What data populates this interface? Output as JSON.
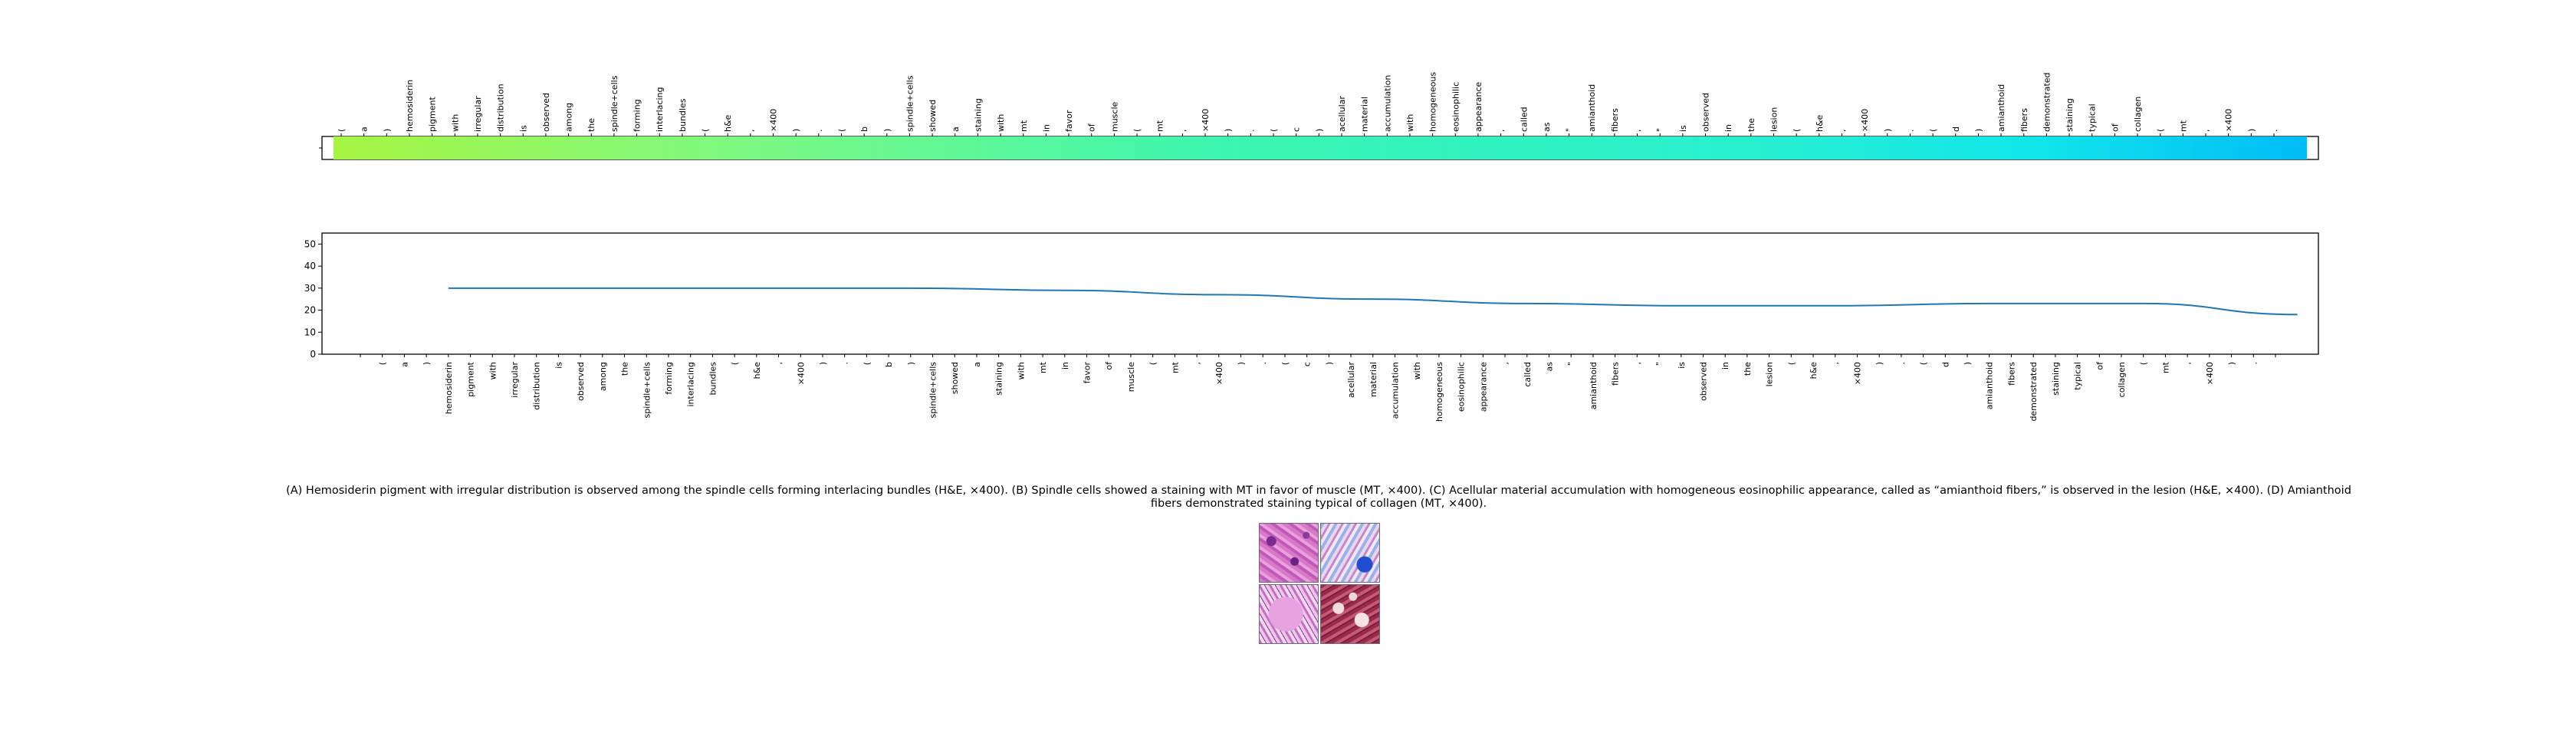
{
  "chart_data": [
    {
      "type": "heatmap",
      "tokens": [
        "(",
        "a",
        ")",
        "hemosiderin",
        "pigment",
        "with",
        "irregular",
        "distribution",
        "is",
        "observed",
        "among",
        "the",
        "spindle+cells",
        "forming",
        "interlacing",
        "bundles",
        "(",
        "h&e",
        ",",
        "×400",
        ")",
        ".",
        "(",
        "b",
        ")",
        "spindle+cells",
        "showed",
        "a",
        "staining",
        "with",
        "mt",
        "in",
        "favor",
        "of",
        "muscle",
        "(",
        "mt",
        ",",
        "×400",
        ")",
        ".",
        "(",
        "c",
        ")",
        "acellular",
        "material",
        "accumulation",
        "with",
        "homogeneous",
        "eosinophilic",
        "appearance",
        ",",
        "called",
        "as",
        "\"",
        "amianthoid",
        "fibers",
        ",",
        "\"",
        "is",
        "observed",
        "in",
        "the",
        "lesion",
        "(",
        "h&e",
        ",",
        "×400",
        ")",
        ".",
        "(",
        "d",
        ")",
        "amianthoid",
        "fibers",
        "demonstrated",
        "staining",
        "typical",
        "of",
        "collagen",
        "(",
        "mt",
        ",",
        "×400",
        ")",
        "."
      ],
      "color_stops": [
        "#a6f542",
        "#7ef980",
        "#3cf6b0",
        "#27efd0",
        "#12e6ea",
        "#00bcf7"
      ],
      "colormap": "jet"
    },
    {
      "type": "line",
      "x_tick_labels": [
        "",
        "(",
        "a",
        ")",
        "hemosiderin",
        "pigment",
        "with",
        "irregular",
        "distribution",
        "is",
        "observed",
        "among",
        "the",
        "spindle+cells",
        "forming",
        "interlacing",
        "bundles",
        "(",
        "h&e",
        ",",
        "×400",
        ")",
        ".",
        "(",
        "b",
        ")",
        "spindle+cells",
        "showed",
        "a",
        "staining",
        "with",
        "mt",
        "in",
        "favor",
        "of",
        "muscle",
        "(",
        "mt",
        ",",
        "×400",
        ")",
        ".",
        "(",
        "c",
        ")",
        "acellular",
        "material",
        "accumulation",
        "with",
        "homogeneous",
        "eosinophilic",
        "appearance",
        ",",
        "called",
        "as",
        "\"",
        "amianthoid",
        "fibers",
        ",",
        "\"",
        "is",
        "observed",
        "in",
        "the",
        "lesion",
        "(",
        "h&e",
        ",",
        "×400",
        ")",
        ".",
        "(",
        "d",
        ")",
        "amianthoid",
        "fibers",
        "demonstrated",
        "staining",
        "typical",
        "of",
        "collagen",
        "(",
        "mt",
        ",",
        "×400",
        ")",
        ".",
        ""
      ],
      "x": [
        0,
        7,
        14,
        21,
        28,
        35,
        42,
        49,
        56,
        63,
        70,
        77,
        84
      ],
      "y": [
        30,
        30,
        30,
        30,
        29,
        27,
        25,
        23,
        22,
        22,
        23,
        23,
        18
      ],
      "yticks": [
        0,
        10,
        20,
        30,
        40,
        50
      ],
      "ylim": [
        0,
        55
      ],
      "color": "#1f77b4",
      "grid": false
    }
  ],
  "caption": "(A) Hemosiderin pigment with irregular distribution is observed among the spindle cells forming interlacing bundles (H&E, ×400). (B) Spindle cells showed a staining with MT in favor of muscle (MT, ×400). (C) Acellular material accumulation with homogeneous eosinophilic appearance, called as “amianthoid fibers,” is observed in the lesion (H&E, ×400). (D) Amianthoid fibers demonstrated staining typical of collagen (MT, ×400).",
  "figure_panels": [
    "A",
    "B",
    "C",
    "D"
  ]
}
